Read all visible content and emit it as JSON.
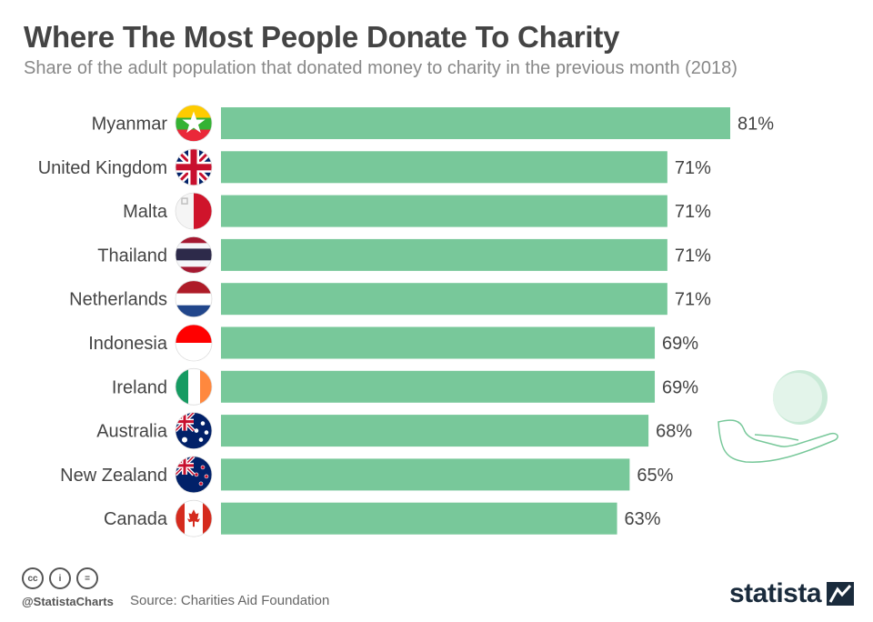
{
  "header": {
    "title": "Where The Most People Donate To Charity",
    "subtitle": "Share of the adult population that donated money to charity in the previous month (2018)"
  },
  "chart_data": {
    "type": "bar",
    "orientation": "horizontal",
    "categories": [
      "Myanmar",
      "United Kingdom",
      "Malta",
      "Thailand",
      "Netherlands",
      "Indonesia",
      "Ireland",
      "Australia",
      "New Zealand",
      "Canada"
    ],
    "values": [
      81,
      71,
      71,
      71,
      71,
      69,
      69,
      68,
      65,
      63
    ],
    "value_labels": [
      "81%",
      "71%",
      "71%",
      "71%",
      "71%",
      "69%",
      "69%",
      "68%",
      "65%",
      "63%"
    ],
    "unit": "%",
    "xlim": [
      0,
      81
    ],
    "grid": false,
    "bar_color": "#78c89a"
  },
  "flags": [
    "myanmar-flag-icon",
    "united-kingdom-flag-icon",
    "malta-flag-icon",
    "thailand-flag-icon",
    "netherlands-flag-icon",
    "indonesia-flag-icon",
    "ireland-flag-icon",
    "australia-flag-icon",
    "new-zealand-flag-icon",
    "canada-flag-icon"
  ],
  "footer": {
    "cc_labels": [
      "cc",
      "i",
      "="
    ],
    "handle": "@StatistaCharts",
    "source": "Source: Charities Aid Foundation",
    "brand": "statista"
  },
  "colors": {
    "title": "#444444",
    "subtitle": "#888888",
    "brand": "#1a2b3c",
    "decoration": "#78c89a"
  }
}
